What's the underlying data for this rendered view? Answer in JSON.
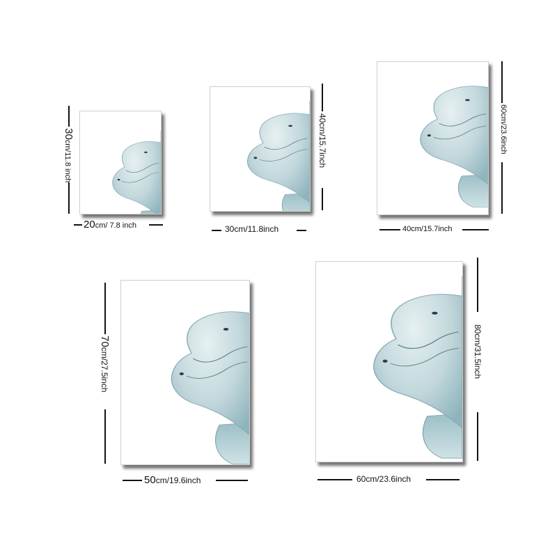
{
  "products": [
    {
      "width_label": {
        "num": "20",
        "unit": "cm/ 7.8 inch"
      },
      "height_label": {
        "num": "30",
        "unit": "cm/11.8 inch"
      },
      "artwork": "beluga-whale"
    },
    {
      "width_label": {
        "num": "",
        "unit": "30cm/11.8inch"
      },
      "height_label": {
        "num": "",
        "unit": "40cm/15.7inch"
      },
      "artwork": "beluga-whale"
    },
    {
      "width_label": {
        "num": "",
        "unit": "40cm/15.7inch"
      },
      "height_label": {
        "num": "",
        "unit": "60cm/23.6inch"
      },
      "artwork": "beluga-whale"
    },
    {
      "width_label": {
        "num": "50",
        "unit": "cm/19.6inch"
      },
      "height_label": {
        "num": "70",
        "unit": "cm/27.5inch"
      },
      "artwork": "beluga-whale"
    },
    {
      "width_label": {
        "num": "",
        "unit": "60cm/23.6inch"
      },
      "height_label": {
        "num": "",
        "unit": "80cm/31.5inch"
      },
      "artwork": "beluga-whale"
    }
  ]
}
